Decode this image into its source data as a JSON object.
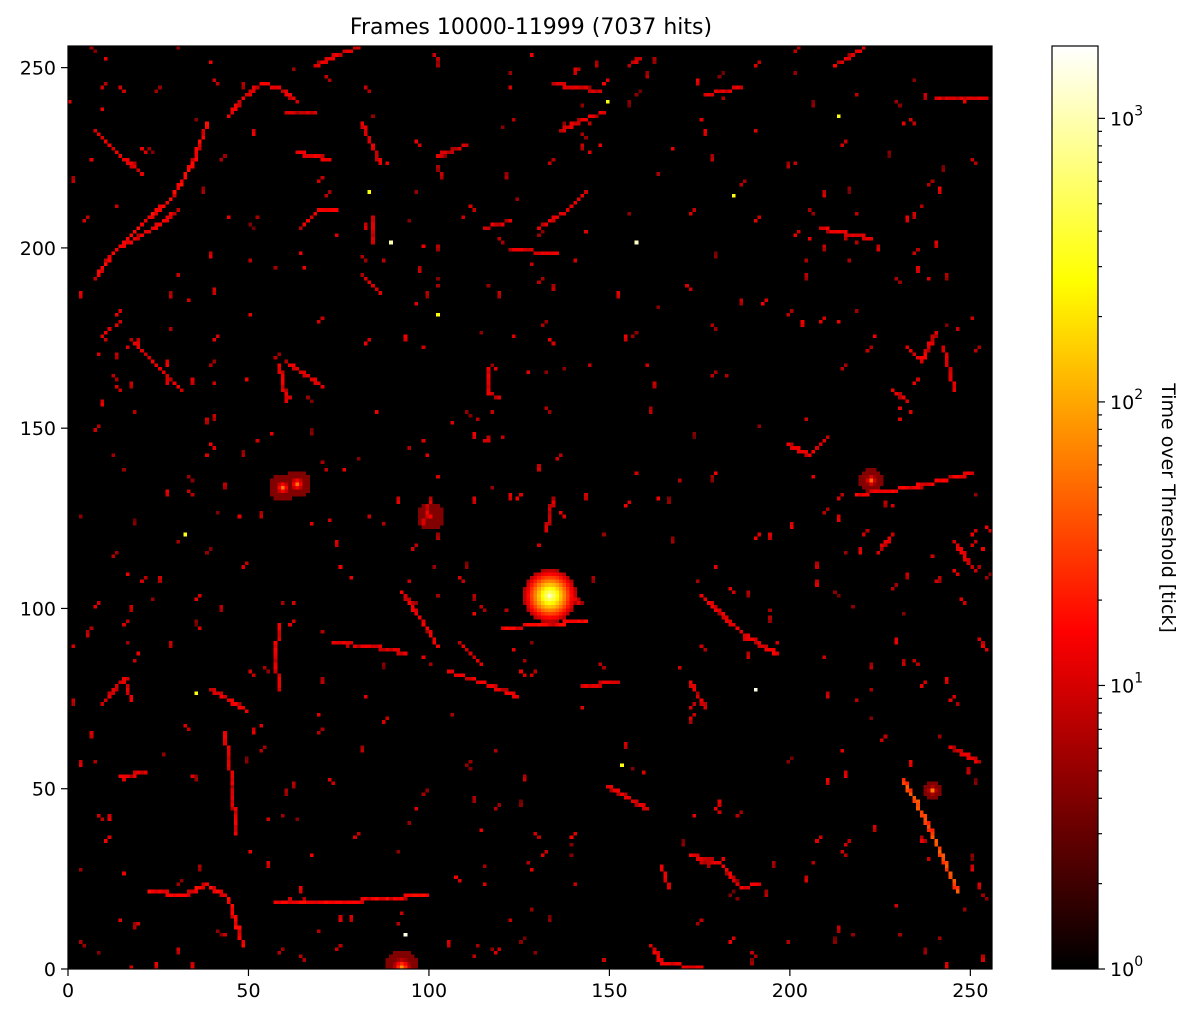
{
  "chart_data": {
    "type": "heatmap",
    "title": "Frames 10000-11999 (7037 hits)",
    "xlim": [
      0,
      256
    ],
    "ylim": [
      0,
      256
    ],
    "xticks": [
      0,
      50,
      100,
      150,
      200,
      250
    ],
    "yticks": [
      0,
      50,
      100,
      150,
      200,
      250
    ],
    "xtick_labels": [
      "0",
      "50",
      "100",
      "150",
      "200",
      "250"
    ],
    "ytick_labels": [
      "0",
      "50",
      "100",
      "150",
      "200",
      "250"
    ],
    "background_color": "#000000",
    "colormap": "hot",
    "colorbar": {
      "label": "Time over Threshold [tick]",
      "scale": "log",
      "range": [
        1,
        1800
      ],
      "ticks": [
        {
          "value": 1,
          "base": "10",
          "exp": "0"
        },
        {
          "value": 10,
          "base": "10",
          "exp": "1"
        },
        {
          "value": 100,
          "base": "10",
          "exp": "2"
        },
        {
          "value": 1000,
          "base": "10",
          "exp": "3"
        }
      ]
    },
    "tracks": [
      {
        "points": [
          [
            7,
            191
          ],
          [
            12,
            198
          ],
          [
            20,
            206
          ],
          [
            28,
            213
          ],
          [
            34,
            223
          ],
          [
            38,
            234
          ]
        ],
        "value": 12
      },
      {
        "points": [
          [
            15,
            200
          ],
          [
            25,
            206
          ],
          [
            30,
            210
          ]
        ],
        "value": 10
      },
      {
        "points": [
          [
            7,
            232
          ],
          [
            13,
            226
          ],
          [
            20,
            220
          ]
        ],
        "value": 10
      },
      {
        "points": [
          [
            44,
            236
          ],
          [
            48,
            241
          ],
          [
            53,
            245
          ],
          [
            58,
            244
          ],
          [
            63,
            240
          ]
        ],
        "value": 10
      },
      {
        "points": [
          [
            68,
            250
          ],
          [
            74,
            253
          ],
          [
            80,
            255
          ]
        ],
        "value": 9
      },
      {
        "points": [
          [
            60,
            237
          ],
          [
            68,
            237
          ]
        ],
        "value": 8
      },
      {
        "points": [
          [
            63,
            226
          ],
          [
            72,
            224
          ]
        ],
        "value": 10
      },
      {
        "points": [
          [
            64,
            205
          ],
          [
            69,
            210
          ],
          [
            74,
            210
          ]
        ],
        "value": 10
      },
      {
        "points": [
          [
            81,
            234
          ],
          [
            86,
            223
          ]
        ],
        "value": 9
      },
      {
        "points": [
          [
            17,
            174
          ],
          [
            25,
            166
          ],
          [
            31,
            160
          ]
        ],
        "value": 9
      },
      {
        "points": [
          [
            58,
            167
          ],
          [
            60,
            158
          ]
        ],
        "value": 10
      },
      {
        "points": [
          [
            60,
            168
          ],
          [
            70,
            161
          ]
        ],
        "value": 9
      },
      {
        "points": [
          [
            116,
            166
          ],
          [
            116,
            159
          ],
          [
            119,
            158
          ]
        ],
        "value": 9
      },
      {
        "points": [
          [
            58,
            95
          ],
          [
            57,
            86
          ],
          [
            58,
            77
          ]
        ],
        "value": 10
      },
      {
        "points": [
          [
            73,
            90
          ],
          [
            84,
            89
          ],
          [
            93,
            87
          ]
        ],
        "value": 9
      },
      {
        "points": [
          [
            92,
            104
          ],
          [
            97,
            97
          ],
          [
            102,
            89
          ]
        ],
        "value": 10
      },
      {
        "points": [
          [
            105,
            82
          ],
          [
            117,
            78
          ],
          [
            124,
            75
          ]
        ],
        "value": 10
      },
      {
        "points": [
          [
            120,
            94
          ],
          [
            131,
            95
          ],
          [
            143,
            96
          ]
        ],
        "value": 12
      },
      {
        "points": [
          [
            140,
            102
          ],
          [
            141,
            101
          ]
        ],
        "value": 9
      },
      {
        "points": [
          [
            175,
            103
          ],
          [
            186,
            93
          ],
          [
            195,
            87
          ]
        ],
        "value": 10
      },
      {
        "points": [
          [
            218,
            131
          ],
          [
            233,
            133
          ],
          [
            250,
            137
          ]
        ],
        "value": 11
      },
      {
        "points": [
          [
            231,
            52
          ],
          [
            238,
            39
          ],
          [
            246,
            21
          ]
        ],
        "value": 30
      },
      {
        "points": [
          [
            43,
            65
          ],
          [
            45,
            51
          ],
          [
            46,
            37
          ]
        ],
        "value": 10
      },
      {
        "points": [
          [
            22,
            21
          ],
          [
            32,
            20
          ],
          [
            38,
            23
          ],
          [
            44,
            19
          ],
          [
            48,
            6
          ]
        ],
        "value": 12
      },
      {
        "points": [
          [
            57,
            18
          ],
          [
            75,
            18
          ],
          [
            99,
            20
          ]
        ],
        "value": 12
      },
      {
        "points": [
          [
            161,
            6
          ],
          [
            164,
            1
          ],
          [
            175,
            0
          ]
        ],
        "value": 10
      },
      {
        "points": [
          [
            172,
            31
          ],
          [
            180,
            29
          ],
          [
            186,
            22
          ],
          [
            191,
            23
          ]
        ],
        "value": 10
      },
      {
        "points": [
          [
            164,
            28
          ],
          [
            166,
            22
          ]
        ],
        "value": 9
      },
      {
        "points": [
          [
            136,
            232
          ],
          [
            142,
            235
          ],
          [
            148,
            237
          ]
        ],
        "value": 9
      },
      {
        "points": [
          [
            147,
            243
          ],
          [
            134,
            245
          ]
        ],
        "value": 8
      },
      {
        "points": [
          [
            122,
            199
          ],
          [
            135,
            198
          ]
        ],
        "value": 9
      },
      {
        "points": [
          [
            130,
            205
          ],
          [
            138,
            210
          ],
          [
            143,
            215
          ]
        ],
        "value": 9
      },
      {
        "points": [
          [
            208,
            205
          ],
          [
            222,
            202
          ]
        ],
        "value": 10
      },
      {
        "points": [
          [
            220,
            255
          ],
          [
            212,
            250
          ]
        ],
        "value": 10
      },
      {
        "points": [
          [
            186,
            244
          ],
          [
            176,
            242
          ]
        ],
        "value": 9
      },
      {
        "points": [
          [
            199,
            145
          ],
          [
            205,
            142
          ],
          [
            210,
            147
          ]
        ],
        "value": 10
      },
      {
        "points": [
          [
            232,
            172
          ],
          [
            236,
            168
          ],
          [
            240,
            176
          ]
        ],
        "value": 10
      },
      {
        "points": [
          [
            242,
            172
          ],
          [
            244,
            165
          ],
          [
            245,
            160
          ]
        ],
        "value": 9
      },
      {
        "points": [
          [
            228,
            160
          ],
          [
            232,
            157
          ]
        ],
        "value": 9
      },
      {
        "points": [
          [
            134,
            130
          ],
          [
            132,
            121
          ]
        ],
        "value": 9
      },
      {
        "points": [
          [
            100,
            130
          ],
          [
            98,
            123
          ]
        ],
        "value": 9
      },
      {
        "points": [
          [
            39,
            77
          ],
          [
            49,
            71
          ]
        ],
        "value": 10
      },
      {
        "points": [
          [
            21,
            54
          ],
          [
            15,
            53
          ]
        ],
        "value": 9
      },
      {
        "points": [
          [
            9,
            73
          ],
          [
            15,
            80
          ],
          [
            17,
            74
          ]
        ],
        "value": 9
      },
      {
        "points": [
          [
            244,
            61
          ],
          [
            252,
            57
          ]
        ],
        "value": 9
      },
      {
        "points": [
          [
            224,
            115
          ],
          [
            228,
            120
          ]
        ],
        "value": 9
      },
      {
        "points": [
          [
            245,
            118
          ],
          [
            250,
            111
          ]
        ],
        "value": 9
      },
      {
        "points": [
          [
            172,
            79
          ],
          [
            176,
            72
          ]
        ],
        "value": 9
      },
      {
        "points": [
          [
            142,
            78
          ],
          [
            152,
            79
          ]
        ],
        "value": 9
      },
      {
        "points": [
          [
            108,
            90
          ],
          [
            114,
            84
          ]
        ],
        "value": 9
      },
      {
        "points": [
          [
            149,
            50
          ],
          [
            160,
            44
          ]
        ],
        "value": 9
      },
      {
        "points": [
          [
            81,
            192
          ],
          [
            86,
            187
          ]
        ],
        "value": 8
      },
      {
        "points": [
          [
            155,
            250
          ],
          [
            158,
            252
          ]
        ],
        "value": 8
      },
      {
        "points": [
          [
            240,
            241
          ],
          [
            254,
            241
          ]
        ],
        "value": 9
      },
      {
        "points": [
          [
            84,
            201
          ],
          [
            84,
            208
          ]
        ],
        "value": 8
      },
      {
        "points": [
          [
            102,
            225
          ],
          [
            110,
            228
          ]
        ],
        "value": 8
      },
      {
        "points": [
          [
            115,
            205
          ],
          [
            122,
            207
          ]
        ],
        "value": 9
      }
    ],
    "clusters": [
      {
        "x": 133,
        "y": 103,
        "peak": 1200,
        "radius": 5
      },
      {
        "x": 59,
        "y": 133,
        "peak": 60,
        "radius": 2.5
      },
      {
        "x": 63,
        "y": 134,
        "peak": 60,
        "radius": 2.5
      },
      {
        "x": 222,
        "y": 135,
        "peak": 50,
        "radius": 2.2
      },
      {
        "x": 92,
        "y": 0,
        "peak": 80,
        "radius": 3
      },
      {
        "x": 100,
        "y": 125,
        "peak": 15,
        "radius": 2.5
      },
      {
        "x": 239,
        "y": 49,
        "peak": 60,
        "radius": 1.6
      }
    ],
    "bright_pixels": [
      {
        "x": 184,
        "y": 214,
        "value": 300
      },
      {
        "x": 190,
        "y": 77,
        "value": 1500
      },
      {
        "x": 153,
        "y": 56,
        "value": 300
      },
      {
        "x": 35,
        "y": 76,
        "value": 300
      },
      {
        "x": 32,
        "y": 120,
        "value": 300
      },
      {
        "x": 89,
        "y": 201,
        "value": 1000
      },
      {
        "x": 157,
        "y": 201,
        "value": 1200
      },
      {
        "x": 93,
        "y": 9,
        "value": 1500
      },
      {
        "x": 149,
        "y": 240,
        "value": 300
      },
      {
        "x": 83,
        "y": 215,
        "value": 300
      },
      {
        "x": 102,
        "y": 181,
        "value": 300
      },
      {
        "x": 213,
        "y": 236,
        "value": 300
      }
    ],
    "random_hits": {
      "count": 560,
      "seed": 7037,
      "min_value": 4,
      "max_value": 14
    }
  }
}
